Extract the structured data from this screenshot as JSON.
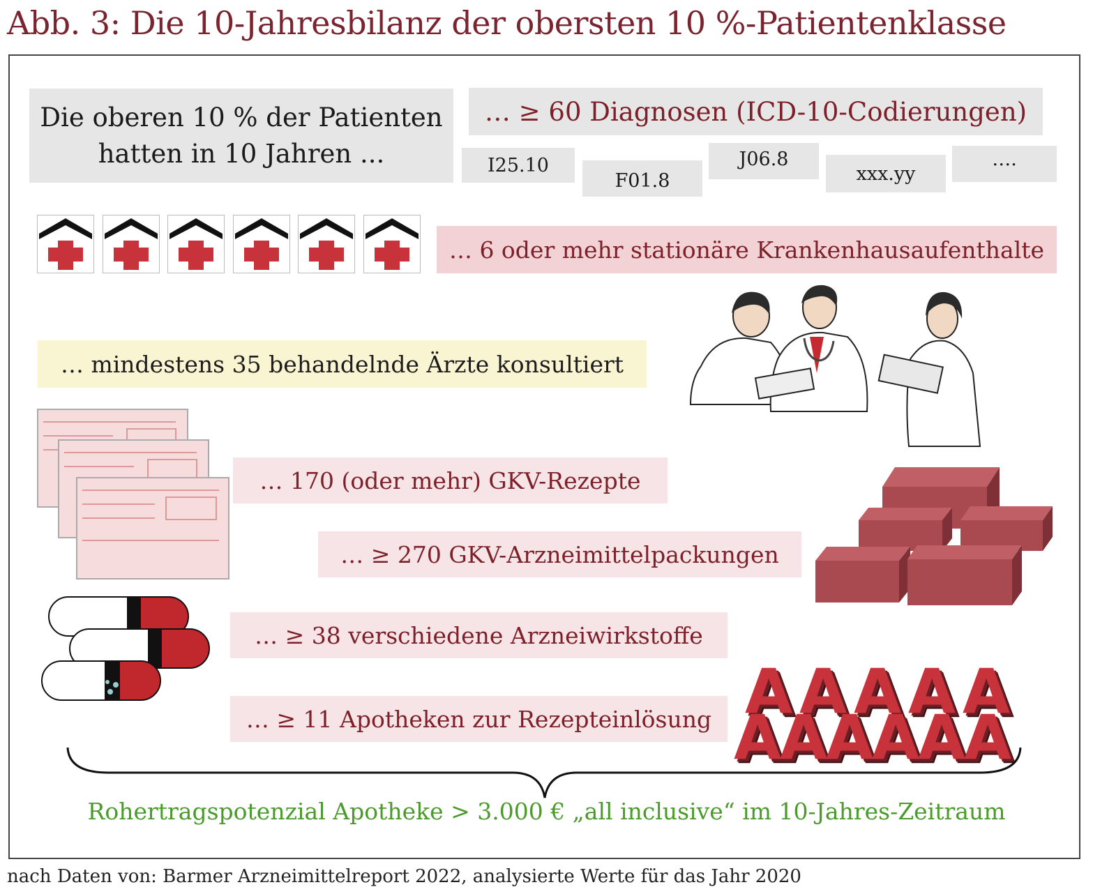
{
  "title": "Abb. 3: Die 10-Jahresbilanz der obersten 10 %-Patientenklasse",
  "intro": {
    "line1": "Die oberen 10 % der Patienten",
    "line2": "hatten in 10 Jahren ..."
  },
  "diagnoses": {
    "label": "… ≥ 60 Diagnosen (ICD-10-Codierungen)",
    "codes": [
      "I25.10",
      "F01.8",
      "J06.8",
      "xxx.yy",
      "…."
    ]
  },
  "hospital": {
    "label": "… 6 oder mehr stationäre Krankenhausaufenthalte",
    "icon_count": 6,
    "icon": "hospital-icon"
  },
  "doctors": {
    "label": "… mindestens 35 behandelnde Ärzte konsultiert",
    "icon": "doctors-illustration"
  },
  "prescriptions": {
    "label": "… 170 (oder mehr) GKV-Rezepte",
    "icon": "prescription-forms"
  },
  "packages": {
    "label": "… ≥ 270 GKV-Arzneimittelpackungen",
    "icon": "medicine-boxes"
  },
  "substances": {
    "label": "… ≥ 38 verschiedene Arzneiwirkstoffe",
    "icon": "capsule-icons"
  },
  "pharmacies": {
    "label": "… ≥ 11 Apotheken zur Rezepteinlösung",
    "letter": "A",
    "row1_count": 5,
    "row2_count": 6
  },
  "summary": "Rohertragspotenzial Apotheke > 3.000 € „all inclusive“ im 10-Jahres-Zeitraum",
  "source": "nach Daten von: Barmer Arzneimittelreport 2022, analysierte Werte für das Jahr 2020",
  "colors": {
    "title": "#7a2430",
    "label_red": "#7d2029",
    "summary_green": "#4a9a2c",
    "cross_red": "#c8323a",
    "box_red": "#a84a50"
  }
}
